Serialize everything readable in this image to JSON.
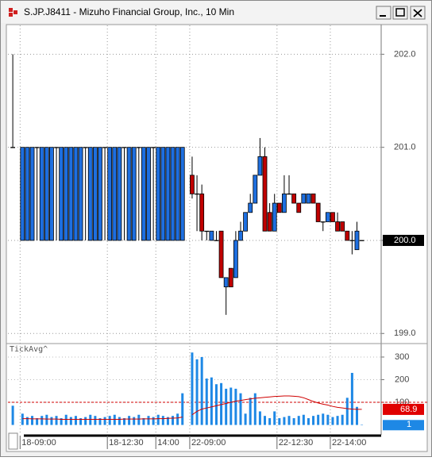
{
  "window": {
    "title": "S.JP.J8411 - Mizuho Financial Group, Inc., 10 Min"
  },
  "chart_data": [
    {
      "type": "candlestick",
      "xlim": [
        -1,
        76
      ],
      "xticks": [
        {
          "value": 2,
          "label": "18-09:00"
        },
        {
          "value": 20,
          "label": "18-12:30"
        },
        {
          "value": 30,
          "label": "14:00"
        },
        {
          "value": 37,
          "label": "22-09:00"
        },
        {
          "value": 55,
          "label": "22-12:30"
        },
        {
          "value": 66,
          "label": "22-14:00"
        }
      ],
      "ylim": [
        198.9,
        202.31
      ],
      "yticks": [
        {
          "value": 199,
          "label": "199.0"
        },
        {
          "value": 200,
          "label": "200.0"
        },
        {
          "value": 201,
          "label": "201.0"
        },
        {
          "value": 202,
          "label": "202.0"
        }
      ],
      "grid": true,
      "up_color": "#1e6fe0",
      "down_color": "#c00000",
      "last_price": {
        "value": 200,
        "label": "200.0"
      },
      "series": [
        {
          "open": [
            201,
            null,
            200,
            200,
            200,
            201,
            200,
            200,
            200,
            201,
            200,
            200,
            200,
            200,
            200,
            201,
            200,
            200,
            200,
            201,
            200,
            200,
            200,
            201,
            200,
            200,
            201,
            200,
            200,
            201,
            200,
            200,
            200,
            200,
            200,
            200,
            null,
            200.7,
            200.5,
            200.5,
            200.1,
            200.0,
            200.0,
            200.1,
            199.5,
            199.7,
            199.6,
            200.0,
            200.1,
            200.3,
            200.4,
            200.7,
            200.9,
            200.3,
            200.1,
            200.4,
            200.3,
            200.5,
            200.5,
            200.4,
            200.4,
            200.4,
            200.5,
            200.4,
            200.2,
            200.2,
            200.3,
            200.2,
            200.2,
            200.1,
            200.0,
            199.9,
            200.0
          ],
          "high": [
            202,
            null,
            201,
            201,
            201,
            201,
            201,
            201,
            201,
            201,
            201,
            201,
            201,
            201,
            201,
            201,
            201,
            201,
            201,
            201,
            201,
            201,
            201,
            201,
            201,
            201,
            201,
            201,
            201,
            201,
            201,
            201,
            201,
            201,
            201,
            201,
            null,
            200.9,
            200.7,
            200.6,
            200.1,
            200.1,
            200.1,
            200.1,
            199.6,
            199.7,
            200.1,
            200.2,
            200.3,
            200.5,
            200.7,
            201.1,
            201.0,
            200.4,
            200.5,
            200.4,
            200.7,
            200.7,
            200.5,
            200.4,
            200.5,
            200.5,
            200.5,
            200.4,
            200.2,
            200.3,
            200.3,
            200.3,
            200.2,
            200.1,
            200.1,
            200.2,
            200.0
          ],
          "low": [
            201,
            null,
            200,
            200,
            200,
            200,
            200,
            200,
            200,
            200,
            200,
            200,
            200,
            200,
            200,
            200,
            200,
            200,
            200,
            200,
            200,
            200,
            200,
            200,
            200,
            200,
            200,
            200,
            200,
            200,
            200,
            200,
            200,
            200,
            200,
            200,
            null,
            200.45,
            200.1,
            200.0,
            200.0,
            200.0,
            200.0,
            199.6,
            199.2,
            199.5,
            199.6,
            200.0,
            200.1,
            200.3,
            200.4,
            200.7,
            200.1,
            200.1,
            200.1,
            200.3,
            200.3,
            200.5,
            200.4,
            200.3,
            200.4,
            200.4,
            200.4,
            200.2,
            200.1,
            200.2,
            200.2,
            200.1,
            200.1,
            200.0,
            199.85,
            199.9,
            200.0
          ],
          "close": [
            201,
            null,
            201,
            201,
            201,
            201,
            201,
            201,
            201,
            201,
            201,
            201,
            201,
            201,
            201,
            201,
            201,
            201,
            201,
            201,
            201,
            201,
            201,
            201,
            201,
            201,
            201,
            201,
            201,
            201,
            201,
            201,
            201,
            201,
            201,
            201,
            null,
            200.5,
            200.5,
            200.1,
            200.1,
            200.1,
            200.0,
            199.6,
            199.6,
            199.5,
            200.0,
            200.1,
            200.3,
            200.4,
            200.7,
            200.9,
            200.1,
            200.1,
            200.4,
            200.3,
            200.5,
            200.5,
            200.4,
            200.3,
            200.5,
            200.5,
            200.4,
            200.2,
            200.2,
            200.3,
            200.2,
            200.1,
            200.1,
            200.0,
            200.0,
            200.1,
            200.0
          ]
        }
      ]
    },
    {
      "type": "bar",
      "title": "TickAvg^",
      "xlim": [
        -1,
        76
      ],
      "ylim": [
        -33,
        356
      ],
      "yticks": [
        100,
        200,
        300
      ],
      "grid": true,
      "threshold": 100,
      "threshold_color": "#d00000",
      "series": [
        {
          "color": "#1e88e5",
          "values": [
            85,
            null,
            50,
            35,
            40,
            30,
            40,
            45,
            35,
            40,
            30,
            45,
            35,
            40,
            30,
            35,
            45,
            40,
            30,
            35,
            40,
            45,
            35,
            30,
            40,
            35,
            45,
            30,
            40,
            35,
            45,
            40,
            35,
            40,
            50,
            140,
            null,
            320,
            290,
            300,
            205,
            210,
            180,
            185,
            160,
            165,
            160,
            140,
            50,
            120,
            140,
            60,
            40,
            30,
            60,
            30,
            35,
            40,
            30,
            40,
            45,
            30,
            40,
            45,
            50,
            45,
            35,
            40,
            45,
            120,
            230,
            80,
            1
          ]
        },
        {
          "type": "line",
          "color": "#d00000",
          "values": [
            30,
            null,
            28,
            28,
            27,
            27,
            27,
            26,
            26,
            26,
            25,
            25,
            25,
            25,
            25,
            25,
            25,
            25,
            25,
            25,
            25,
            25,
            25,
            26,
            26,
            26,
            26,
            27,
            27,
            27,
            28,
            28,
            29,
            30,
            31,
            35,
            null,
            45,
            60,
            70,
            75,
            80,
            85,
            90,
            95,
            100,
            105,
            108,
            112,
            115,
            118,
            120,
            122,
            124,
            126,
            127,
            128,
            128,
            127,
            125,
            120,
            112,
            104,
            97,
            92,
            88,
            82,
            78,
            75,
            72,
            70,
            69,
            68.9
          ]
        }
      ]
    }
  ]
}
